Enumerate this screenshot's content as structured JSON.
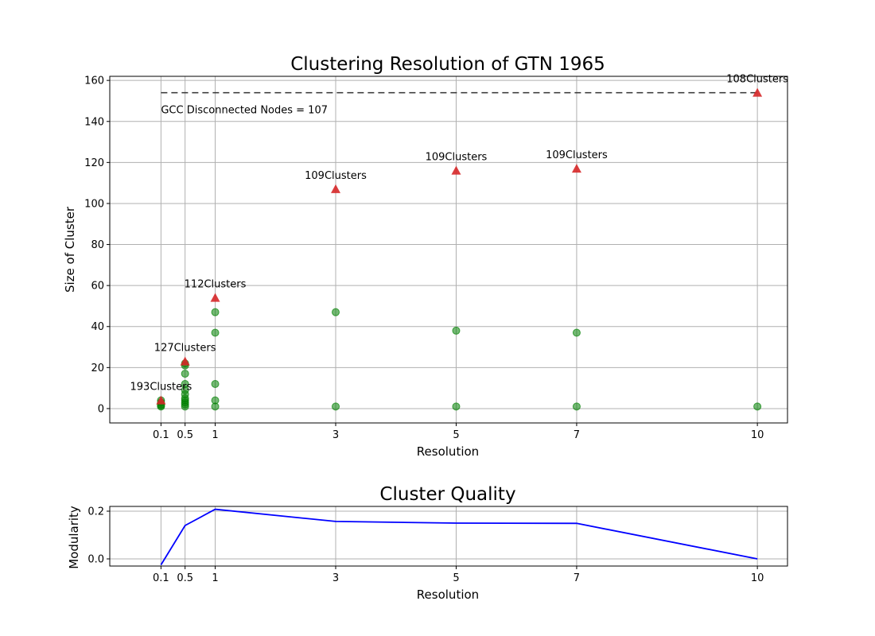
{
  "chart_data": [
    {
      "type": "scatter",
      "title": "Clustering Resolution of GTN 1965",
      "xlabel": "Resolution",
      "ylabel": "Size of Cluster",
      "xlim": [
        -0.75,
        10.5
      ],
      "ylim": [
        -7,
        162
      ],
      "xticks": [
        0.1,
        0.5,
        1,
        3,
        5,
        7,
        10
      ],
      "xtick_labels": [
        "0.1",
        "0.5",
        "1",
        "3",
        "5",
        "7",
        "10"
      ],
      "yticks": [
        0,
        20,
        40,
        60,
        80,
        100,
        120,
        140,
        160
      ],
      "ytick_labels": [
        "0",
        "20",
        "40",
        "60",
        "80",
        "100",
        "120",
        "140",
        "160"
      ],
      "grid": true,
      "colors": {
        "cluster": "#008000",
        "largest": "#d62728",
        "gcc_line": "#333333"
      },
      "gcc_line": {
        "y": 154,
        "x": [
          0.1,
          10
        ]
      },
      "gcc_label": "GCC  Disconnected Nodes = 107",
      "series": [
        {
          "marker": "circle",
          "points": [
            [
              0.1,
              1
            ],
            [
              0.1,
              1.5
            ],
            [
              0.1,
              2
            ],
            [
              0.1,
              3
            ],
            [
              0.1,
              4
            ],
            [
              0.5,
              1
            ],
            [
              0.5,
              2
            ],
            [
              0.5,
              3
            ],
            [
              0.5,
              4
            ],
            [
              0.5,
              5
            ],
            [
              0.5,
              7
            ],
            [
              0.5,
              9
            ],
            [
              0.5,
              12
            ],
            [
              0.5,
              17
            ],
            [
              0.5,
              21
            ],
            [
              0.5,
              22
            ],
            [
              1,
              1
            ],
            [
              1,
              4
            ],
            [
              1,
              12
            ],
            [
              1,
              37
            ],
            [
              1,
              47
            ],
            [
              3,
              1
            ],
            [
              3,
              47
            ],
            [
              5,
              1
            ],
            [
              5,
              38
            ],
            [
              7,
              1
            ],
            [
              7,
              37
            ],
            [
              10,
              1
            ]
          ]
        },
        {
          "marker": "triangle",
          "points": [
            [
              0.1,
              4
            ],
            [
              0.5,
              23
            ],
            [
              1,
              54
            ],
            [
              3,
              107
            ],
            [
              5,
              116
            ],
            [
              7,
              117
            ],
            [
              10,
              154
            ]
          ]
        }
      ],
      "annotations": [
        {
          "x": 0.1,
          "y": 4,
          "text": "193Clusters"
        },
        {
          "x": 0.5,
          "y": 23,
          "text": "127Clusters"
        },
        {
          "x": 1,
          "y": 54,
          "text": "112Clusters"
        },
        {
          "x": 3,
          "y": 107,
          "text": "109Clusters"
        },
        {
          "x": 5,
          "y": 116,
          "text": "109Clusters"
        },
        {
          "x": 7,
          "y": 117,
          "text": "109Clusters"
        },
        {
          "x": 10,
          "y": 154,
          "text": "108Clusters"
        }
      ]
    },
    {
      "type": "line",
      "title": "Cluster Quality",
      "xlabel": "Resolution",
      "ylabel": "Modularity",
      "xlim": [
        -0.75,
        10.5
      ],
      "ylim": [
        -0.03,
        0.22
      ],
      "xticks": [
        0.1,
        0.5,
        1,
        3,
        5,
        7,
        10
      ],
      "xtick_labels": [
        "0.1",
        "0.5",
        "1",
        "3",
        "5",
        "7",
        "10"
      ],
      "yticks": [
        0,
        0.2
      ],
      "ytick_labels": [
        "0.0",
        "0.2"
      ],
      "grid": true,
      "colors": {
        "line": "#0000ff"
      },
      "x": [
        0.1,
        0.5,
        1,
        3,
        5,
        7,
        10
      ],
      "y": [
        -0.025,
        0.14,
        0.208,
        0.157,
        0.15,
        0.149,
        0.0
      ]
    }
  ]
}
